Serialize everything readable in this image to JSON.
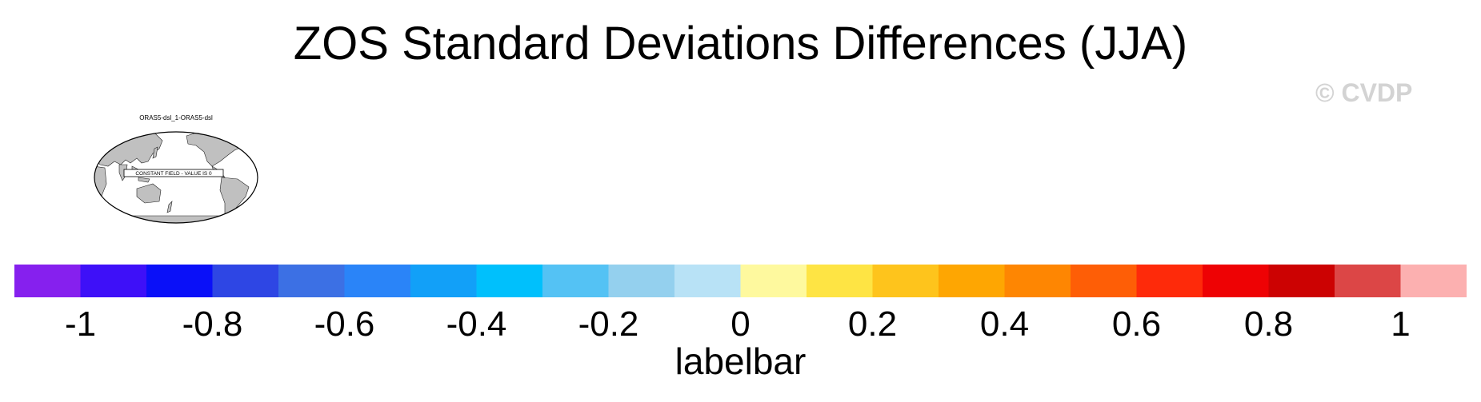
{
  "title": "ZOS Standard Deviations Differences (JJA)",
  "watermark": "© CVDP",
  "panels": [
    {
      "title": "ORAS5-dsl_1-ORAS5-dsl",
      "message": "CONSTANT FIELD - VALUE IS 0",
      "land_color": "#c0c0c0",
      "ocean_color": "#ffffff"
    }
  ],
  "chart_data": {
    "type": "heatmap",
    "title": "ZOS Standard Deviations Differences (JJA)",
    "colorbar": {
      "label": "labelbar",
      "range": [
        -1.1,
        1.1
      ],
      "boundaries": [
        -1,
        -0.9,
        -0.8,
        -0.7,
        -0.6,
        -0.5,
        -0.4,
        -0.3,
        -0.2,
        -0.1,
        0,
        0.1,
        0.2,
        0.3,
        0.4,
        0.5,
        0.6,
        0.7,
        0.8,
        0.9,
        1
      ],
      "tick_values": [
        -1,
        -0.8,
        -0.6,
        -0.4,
        -0.2,
        0,
        0.2,
        0.4,
        0.6,
        0.8,
        1
      ],
      "tick_labels": [
        "-1",
        "-0.8",
        "-0.6",
        "-0.4",
        "-0.2",
        "0",
        "0.2",
        "0.4",
        "0.6",
        "0.8",
        "1"
      ],
      "colors": [
        "#8620ee",
        "#3e10f8",
        "#0a10f8",
        "#2e46e4",
        "#3c70e4",
        "#2a84f8",
        "#12a0f8",
        "#00c0fc",
        "#54c2f4",
        "#94d0ee",
        "#b8e2f6",
        "#fef99e",
        "#fee444",
        "#fec41c",
        "#fea602",
        "#fe8602",
        "#fe5e06",
        "#fe2a0a",
        "#ee0204",
        "#cc0202",
        "#dc4646",
        "#fcb0b0"
      ]
    }
  }
}
